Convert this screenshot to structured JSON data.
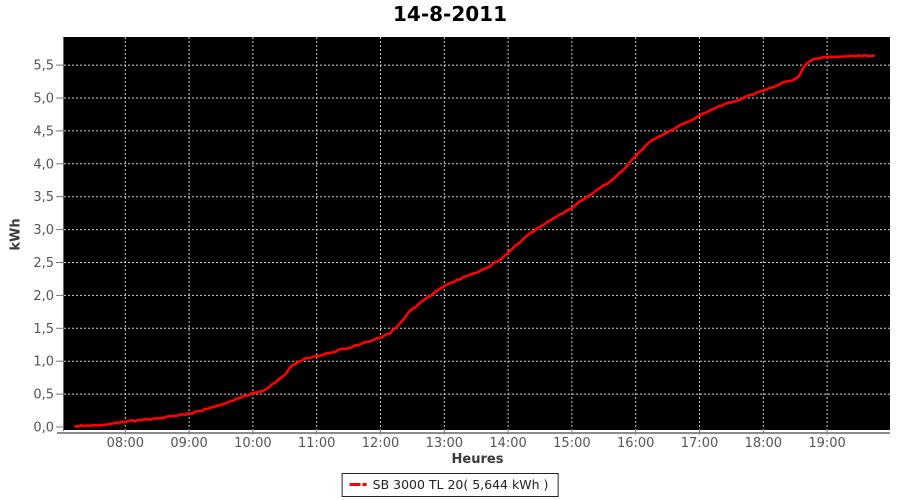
{
  "title": "14-8-2011",
  "colors": {
    "background": "#ffffff",
    "plot_background": "#000000",
    "gridline": "#cfcfcf",
    "series": "#ff0000",
    "axis_line": "#8c8c8c",
    "tick_mark": "#777777",
    "tick_label": "#555555",
    "axis_label": "#3a3a3a",
    "legend_border": "#222222",
    "legend_text": "#222222"
  },
  "chart_data": {
    "type": "line",
    "title": "14-8-2011",
    "xlabel": "Heures",
    "ylabel": "kWh",
    "grid": {
      "on": true,
      "style": "dotted"
    },
    "x_axis": {
      "unit": "time-of-day",
      "range_hours": [
        7.04,
        19.98
      ],
      "ticks": [
        {
          "value": 8,
          "label": "08:00"
        },
        {
          "value": 9,
          "label": "09:00"
        },
        {
          "value": 10,
          "label": "10:00"
        },
        {
          "value": 11,
          "label": "11:00"
        },
        {
          "value": 12,
          "label": "12:00"
        },
        {
          "value": 13,
          "label": "13:00"
        },
        {
          "value": 14,
          "label": "14:00"
        },
        {
          "value": 15,
          "label": "15:00"
        },
        {
          "value": 16,
          "label": "16:00"
        },
        {
          "value": 17,
          "label": "17:00"
        },
        {
          "value": 18,
          "label": "18:00"
        },
        {
          "value": 19,
          "label": "19:00"
        }
      ]
    },
    "y_axis": {
      "unit": "kWh",
      "range": [
        0,
        5.93
      ],
      "ticks": [
        {
          "value": 0.0,
          "label": "0,0"
        },
        {
          "value": 0.5,
          "label": "0,5"
        },
        {
          "value": 1.0,
          "label": "1,0"
        },
        {
          "value": 1.5,
          "label": "1,5"
        },
        {
          "value": 2.0,
          "label": "2,0"
        },
        {
          "value": 2.5,
          "label": "2,5"
        },
        {
          "value": 3.0,
          "label": "3,0"
        },
        {
          "value": 3.5,
          "label": "3,5"
        },
        {
          "value": 4.0,
          "label": "4,0"
        },
        {
          "value": 4.5,
          "label": "4,5"
        },
        {
          "value": 5.0,
          "label": "5,0"
        },
        {
          "value": 5.5,
          "label": "5,5"
        }
      ]
    },
    "legend": {
      "position": "bottom",
      "entries": [
        {
          "label": "SB 3000 TL 20( 5,644 kWh )",
          "color": "#ff0000"
        }
      ]
    },
    "series": [
      {
        "name": "SB 3000 TL 20( 5,644 kWh )",
        "color": "#ff0000",
        "points_hour_kwh": [
          [
            7.22,
            0.01
          ],
          [
            7.35,
            0.02
          ],
          [
            7.5,
            0.03
          ],
          [
            7.65,
            0.04
          ],
          [
            7.8,
            0.055
          ],
          [
            8.0,
            0.08
          ],
          [
            8.2,
            0.1
          ],
          [
            8.4,
            0.12
          ],
          [
            8.6,
            0.14
          ],
          [
            8.8,
            0.17
          ],
          [
            9.0,
            0.2
          ],
          [
            9.2,
            0.25
          ],
          [
            9.4,
            0.31
          ],
          [
            9.6,
            0.37
          ],
          [
            9.8,
            0.44
          ],
          [
            9.93,
            0.49
          ],
          [
            10.05,
            0.52
          ],
          [
            10.2,
            0.57
          ],
          [
            10.35,
            0.68
          ],
          [
            10.5,
            0.8
          ],
          [
            10.62,
            0.94
          ],
          [
            10.72,
            1.0
          ],
          [
            10.85,
            1.04
          ],
          [
            11.0,
            1.08
          ],
          [
            11.2,
            1.13
          ],
          [
            11.4,
            1.18
          ],
          [
            11.6,
            1.23
          ],
          [
            11.8,
            1.3
          ],
          [
            12.0,
            1.36
          ],
          [
            12.15,
            1.43
          ],
          [
            12.3,
            1.56
          ],
          [
            12.45,
            1.75
          ],
          [
            12.6,
            1.87
          ],
          [
            12.75,
            1.97
          ],
          [
            12.9,
            2.08
          ],
          [
            13.0,
            2.14
          ],
          [
            13.15,
            2.21
          ],
          [
            13.3,
            2.27
          ],
          [
            13.5,
            2.35
          ],
          [
            13.7,
            2.44
          ],
          [
            13.85,
            2.53
          ],
          [
            14.0,
            2.64
          ],
          [
            14.15,
            2.78
          ],
          [
            14.3,
            2.91
          ],
          [
            14.5,
            3.04
          ],
          [
            14.7,
            3.16
          ],
          [
            14.9,
            3.27
          ],
          [
            15.0,
            3.33
          ],
          [
            15.2,
            3.47
          ],
          [
            15.4,
            3.6
          ],
          [
            15.6,
            3.73
          ],
          [
            15.8,
            3.9
          ],
          [
            16.0,
            4.12
          ],
          [
            16.15,
            4.27
          ],
          [
            16.3,
            4.38
          ],
          [
            16.5,
            4.48
          ],
          [
            16.7,
            4.59
          ],
          [
            16.9,
            4.68
          ],
          [
            17.0,
            4.73
          ],
          [
            17.2,
            4.83
          ],
          [
            17.4,
            4.91
          ],
          [
            17.6,
            4.97
          ],
          [
            17.8,
            5.04
          ],
          [
            18.0,
            5.11
          ],
          [
            18.2,
            5.19
          ],
          [
            18.35,
            5.24
          ],
          [
            18.5,
            5.29
          ],
          [
            18.56,
            5.32
          ],
          [
            18.62,
            5.44
          ],
          [
            18.68,
            5.53
          ],
          [
            18.75,
            5.58
          ],
          [
            18.85,
            5.6
          ],
          [
            19.0,
            5.62
          ],
          [
            19.2,
            5.63
          ],
          [
            19.45,
            5.64
          ],
          [
            19.73,
            5.645
          ]
        ]
      }
    ]
  }
}
